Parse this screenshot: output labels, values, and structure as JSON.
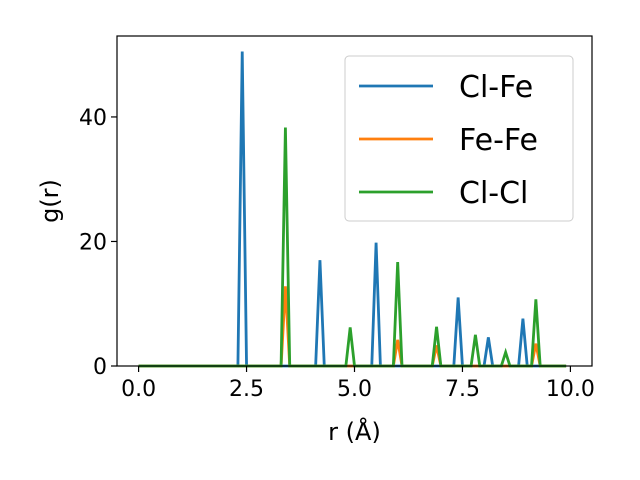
{
  "chart_data": {
    "type": "line",
    "title": "",
    "xlabel": "r (Å)",
    "ylabel": "g(r)",
    "xlim": [
      -0.5,
      10.5
    ],
    "ylim": [
      0,
      53
    ],
    "xticks": [
      0.0,
      2.5,
      5.0,
      7.5,
      10.0
    ],
    "xtick_labels": [
      "0.0",
      "2.5",
      "5.0",
      "7.5",
      "10.0"
    ],
    "yticks": [
      0,
      20,
      40
    ],
    "ytick_labels": [
      "0",
      "20",
      "40"
    ],
    "grid": false,
    "legend_position": "top-right",
    "x_range": [
      0.0,
      9.9
    ],
    "series": [
      {
        "name": "Cl-Fe",
        "color": "#1f77b4",
        "peaks": [
          {
            "x": 2.4,
            "y": 50.5
          },
          {
            "x": 4.2,
            "y": 17.0
          },
          {
            "x": 5.5,
            "y": 19.8
          },
          {
            "x": 7.4,
            "y": 11.0
          },
          {
            "x": 8.1,
            "y": 4.6
          },
          {
            "x": 8.9,
            "y": 7.6
          }
        ]
      },
      {
        "name": "Fe-Fe",
        "color": "#ff7f0e",
        "peaks": [
          {
            "x": 3.4,
            "y": 12.8
          },
          {
            "x": 6.0,
            "y": 4.2
          },
          {
            "x": 6.9,
            "y": 3.3
          },
          {
            "x": 9.2,
            "y": 3.6
          }
        ]
      },
      {
        "name": "Cl-Cl",
        "color": "#2ca02c",
        "peaks": [
          {
            "x": 3.4,
            "y": 38.3
          },
          {
            "x": 4.9,
            "y": 6.2
          },
          {
            "x": 6.0,
            "y": 16.7
          },
          {
            "x": 6.9,
            "y": 6.3
          },
          {
            "x": 7.8,
            "y": 5.0
          },
          {
            "x": 8.5,
            "y": 2.2
          },
          {
            "x": 9.2,
            "y": 10.7
          }
        ]
      }
    ]
  }
}
